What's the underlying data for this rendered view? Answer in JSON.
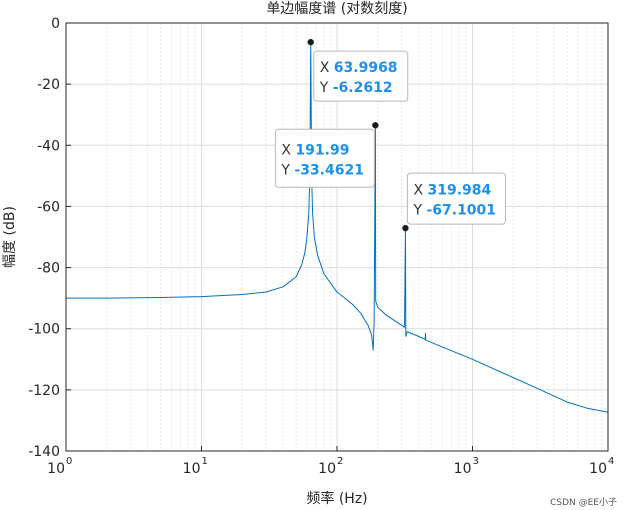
{
  "chart_data": {
    "type": "line",
    "title": "单边幅度谱 (对数刻度)",
    "xlabel": "频率 (Hz)",
    "ylabel": "幅度 (dB)",
    "xscale": "log",
    "xlim": [
      1,
      10000
    ],
    "ylim": [
      -140,
      0
    ],
    "grid": true,
    "x_ticks": [
      {
        "value": 1,
        "base": "10",
        "exp": "0"
      },
      {
        "value": 10,
        "base": "10",
        "exp": "1"
      },
      {
        "value": 100,
        "base": "10",
        "exp": "2"
      },
      {
        "value": 1000,
        "base": "10",
        "exp": "3"
      },
      {
        "value": 10000,
        "base": "10",
        "exp": "4"
      }
    ],
    "y_ticks": [
      0,
      -20,
      -40,
      -60,
      -80,
      -100,
      -120,
      -140
    ],
    "line_color": "#0072bd",
    "series_points": [
      [
        1,
        -90.0
      ],
      [
        2,
        -90.0
      ],
      [
        5,
        -89.8
      ],
      [
        10,
        -89.5
      ],
      [
        20,
        -88.8
      ],
      [
        30,
        -88.0
      ],
      [
        40,
        -86.3
      ],
      [
        50,
        -83.0
      ],
      [
        55,
        -79.0
      ],
      [
        58,
        -75.0
      ],
      [
        60,
        -70.0
      ],
      [
        62,
        -62.0
      ],
      [
        63,
        -50.0
      ],
      [
        63.9968,
        -6.2612
      ],
      [
        65,
        -50.0
      ],
      [
        66,
        -62.0
      ],
      [
        68,
        -70.0
      ],
      [
        72,
        -76.0
      ],
      [
        80,
        -82.0
      ],
      [
        100,
        -88.0
      ],
      [
        130,
        -92.0
      ],
      [
        150,
        -95.0
      ],
      [
        170,
        -99.0
      ],
      [
        180,
        -102.0
      ],
      [
        185,
        -107.0
      ],
      [
        188,
        -97.0
      ],
      [
        191.99,
        -33.4621
      ],
      [
        193,
        -91.0
      ],
      [
        200,
        -93.0
      ],
      [
        230,
        -95.5
      ],
      [
        280,
        -98.0
      ],
      [
        315,
        -99.5
      ],
      [
        319.984,
        -67.1001
      ],
      [
        322,
        -102.5
      ],
      [
        330,
        -101.0
      ],
      [
        400,
        -102.5
      ],
      [
        447,
        -103.5
      ],
      [
        450,
        -101.5
      ],
      [
        452,
        -103.7
      ],
      [
        600,
        -106.0
      ],
      [
        1000,
        -110.0
      ],
      [
        2000,
        -116.0
      ],
      [
        3000,
        -119.5
      ],
      [
        5000,
        -124.0
      ],
      [
        7000,
        -126.0
      ],
      [
        10000,
        -127.3
      ]
    ],
    "datatips": [
      {
        "x_key": "X",
        "y_key": "Y",
        "x": "63.9968",
        "y": "-6.2612",
        "xv": 63.9968,
        "yv": -6.2612
      },
      {
        "x_key": "X",
        "y_key": "Y",
        "x": "191.99",
        "y": "-33.4621",
        "xv": 191.99,
        "yv": -33.4621
      },
      {
        "x_key": "X",
        "y_key": "Y",
        "x": "319.984",
        "y": "-67.1001",
        "xv": 319.984,
        "yv": -67.1001
      }
    ]
  },
  "watermark": "CSDN @EE小子"
}
